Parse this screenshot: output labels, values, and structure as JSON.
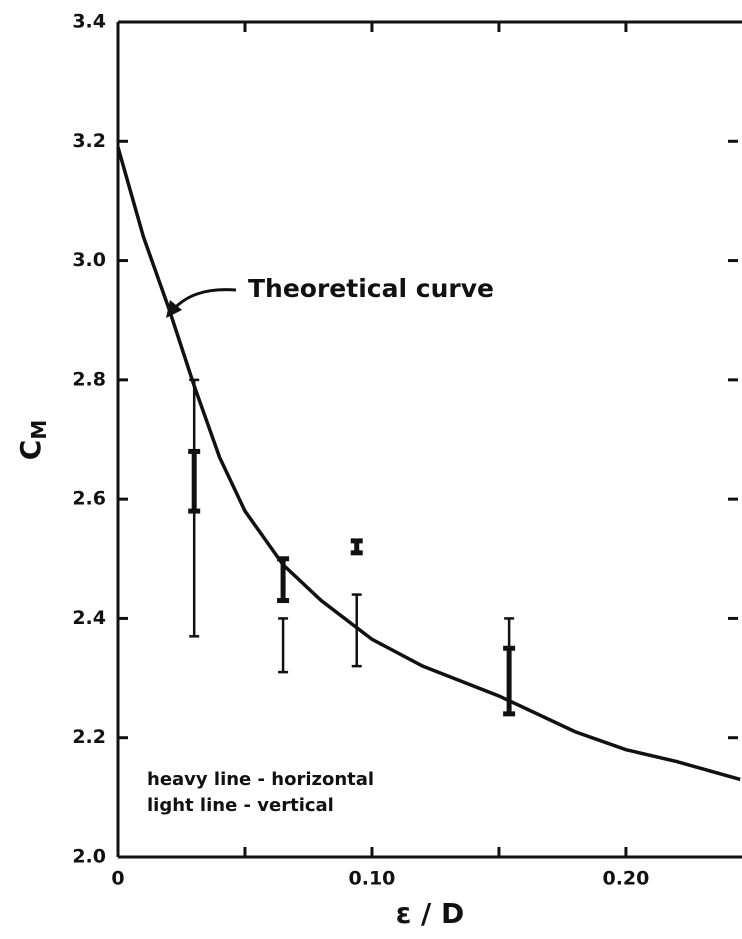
{
  "chart_data": {
    "type": "line",
    "x_label": "ε / D",
    "y_label": "C",
    "y_label_sub": "M",
    "annotation": "Theoretical curve",
    "notes": [
      "heavy line - horizontal",
      "light line - vertical"
    ],
    "x": [
      0,
      0.01,
      0.02,
      0.03,
      0.04,
      0.05,
      0.065,
      0.08,
      0.1,
      0.12,
      0.15,
      0.18,
      0.2,
      0.22,
      0.245
    ],
    "values": [
      3.19,
      3.04,
      2.92,
      2.79,
      2.67,
      2.58,
      2.49,
      2.43,
      2.365,
      2.32,
      2.27,
      2.21,
      2.18,
      2.16,
      2.13
    ],
    "color": "#111111",
    "heavy_ranges": {
      "x": [
        0.03,
        0.065,
        0.094,
        0.154
      ],
      "low": [
        2.58,
        2.43,
        2.51,
        2.24
      ],
      "high": [
        2.68,
        2.5,
        2.53,
        2.35
      ]
    },
    "light_ranges": {
      "x": [
        0.03,
        0.065,
        0.094,
        0.154
      ],
      "low": [
        2.37,
        2.31,
        2.32,
        2.35
      ],
      "high": [
        2.8,
        2.4,
        2.44,
        2.4
      ]
    },
    "xlim": [
      0,
      0.2457
    ],
    "ylim": [
      2.0,
      3.4
    ],
    "xticks": [
      0,
      {
        "value": 0.1,
        "label": "0.10"
      },
      {
        "value": 0.2,
        "label": "0.20"
      }
    ],
    "xminor_ticks": [
      0.05,
      0.15
    ],
    "yticks": [
      {
        "value": 2.0,
        "label": "2.0"
      },
      2.2,
      2.4,
      2.6,
      2.8,
      {
        "value": 3.0,
        "label": "3.0"
      },
      3.2,
      3.4
    ],
    "grid": false
  }
}
